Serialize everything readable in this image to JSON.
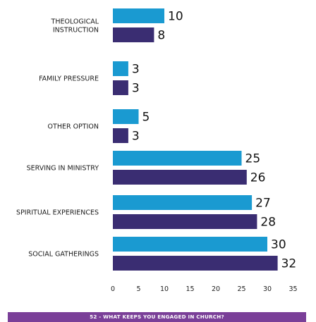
{
  "chart_data": {
    "type": "bar",
    "orientation": "horizontal",
    "categories": [
      [
        "THEOLOGICAL",
        "INSTRUCTION"
      ],
      [
        "FAMILY PRESSURE"
      ],
      [
        "OTHER OPTION"
      ],
      [
        "SERVING IN MINISTRY"
      ],
      [
        "SPIRITUAL EXPERIENCES"
      ],
      [
        "SOCIAL GATHERINGS"
      ]
    ],
    "series": [
      {
        "values": [
          10,
          3,
          5,
          25,
          27,
          30
        ],
        "color": "#1a9ad1"
      },
      {
        "values": [
          8,
          3,
          3,
          26,
          28,
          32
        ],
        "color": "#3a2d72"
      }
    ],
    "x_ticks": [
      "0",
      "5",
      "10",
      "15",
      "20",
      "25",
      "30",
      "35"
    ],
    "xlim": [
      0,
      35
    ],
    "grid": false,
    "legend": "none"
  },
  "footer": {
    "text": "52 - WHAT KEEPS YOU ENGAGED IN CHURCH?",
    "color": "#7a3f98"
  }
}
